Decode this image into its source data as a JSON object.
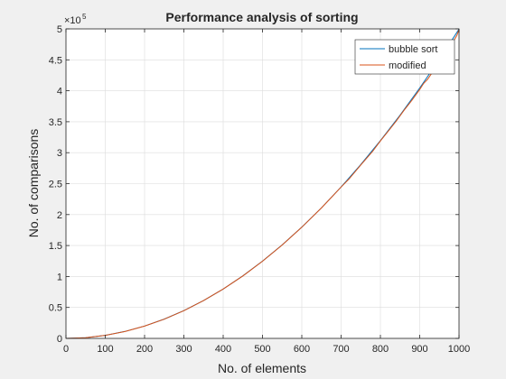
{
  "chart_data": {
    "type": "line",
    "title": "Performance analysis of sorting",
    "xlabel": "No. of elements",
    "ylabel": "No. of comparisons",
    "xlim": [
      0,
      1000
    ],
    "ylim": [
      0,
      500000
    ],
    "y_exponent_label": "×10",
    "y_exponent_power": "5",
    "x_ticks": [
      0,
      100,
      200,
      300,
      400,
      500,
      600,
      700,
      800,
      900,
      1000
    ],
    "x_tick_labels": [
      "0",
      "100",
      "200",
      "300",
      "400",
      "500",
      "600",
      "700",
      "800",
      "900",
      "1000"
    ],
    "y_ticks": [
      0,
      50000,
      100000,
      150000,
      200000,
      250000,
      300000,
      350000,
      400000,
      450000,
      500000
    ],
    "y_tick_labels": [
      "0",
      "0.5",
      "1",
      "1.5",
      "2",
      "2.5",
      "3",
      "3.5",
      "4",
      "4.5",
      "5"
    ],
    "grid": true,
    "legend_position": "top-right",
    "series": [
      {
        "name": "bubble sort",
        "color": "#0072bd",
        "x": [
          0,
          50,
          100,
          150,
          200,
          250,
          300,
          350,
          400,
          450,
          500,
          550,
          600,
          650,
          700,
          750,
          800,
          850,
          900,
          950,
          1000
        ],
        "y": [
          0,
          1225,
          4950,
          11175,
          19900,
          31125,
          44850,
          61075,
          79800,
          101025,
          124750,
          150975,
          179700,
          210925,
          244650,
          280875,
          319600,
          360825,
          404550,
          450775,
          499500
        ]
      },
      {
        "name": "modified",
        "color": "#d95319",
        "x": [
          0,
          50,
          100,
          150,
          200,
          250,
          300,
          350,
          400,
          450,
          500,
          550,
          600,
          650,
          700,
          720,
          750,
          780,
          800,
          820,
          840,
          860,
          880,
          900,
          910,
          920,
          940,
          960,
          975,
          985,
          995,
          1000
        ],
        "y": [
          0,
          1220,
          4940,
          11150,
          19880,
          31090,
          44800,
          61010,
          79720,
          100930,
          124640,
          150850,
          179560,
          210770,
          244480,
          257500,
          280200,
          302000,
          318900,
          334800,
          350900,
          368400,
          384600,
          402000,
          412000,
          418500,
          437000,
          455000,
          466000,
          479000,
          490000,
          499000
        ]
      }
    ]
  }
}
